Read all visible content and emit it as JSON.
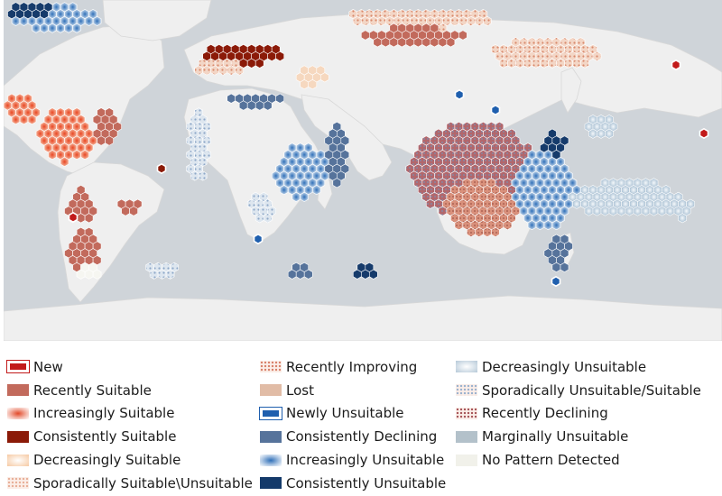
{
  "map": {
    "colors": {
      "ocean": "#cfd4d9",
      "land": "#efefef",
      "country_border": "#d3d3d3"
    }
  },
  "legend": {
    "columns": [
      [
        {
          "key": "new",
          "label": "New",
          "swatch": "new",
          "color": "#c21a1a"
        },
        {
          "key": "recently_suitable",
          "label": "Recently Suitable",
          "swatch": "solid",
          "color": "#c26a5c"
        },
        {
          "key": "increasingly_suitable",
          "label": "Increasingly Suitable",
          "swatch": "glow",
          "color": "#e24a2a"
        },
        {
          "key": "consistently_suitable",
          "label": "Consistently Suitable",
          "swatch": "solid",
          "color": "#8b1a08"
        },
        {
          "key": "decreasingly_suitable",
          "label": "Decreasingly Suitable",
          "swatch": "fade",
          "color": "#f6c9a2"
        },
        {
          "key": "sporadically_suitable_unsuitable",
          "label": "Sporadically Suitable\\Unsuitable",
          "swatch": "dots",
          "color": "#e8b09a"
        }
      ],
      [
        {
          "key": "recently_improving",
          "label": "Recently Improving",
          "swatch": "dots",
          "color": "#d8836c"
        },
        {
          "key": "lost",
          "label": "Lost",
          "swatch": "solid",
          "color": "#e1bca6"
        },
        {
          "key": "newly_unsuitable",
          "label": "Newly Unsuitable",
          "swatch": "new",
          "color": "#1f5fae"
        },
        {
          "key": "consistently_declining",
          "label": "Consistently Declining",
          "swatch": "solid",
          "color": "#56739b"
        },
        {
          "key": "increasingly_unsuitable",
          "label": "Increasingly Unsuitable",
          "swatch": "glow",
          "color": "#2f6fb8"
        },
        {
          "key": "consistently_unsuitable",
          "label": "Consistently Unsuitable",
          "swatch": "solid",
          "color": "#143a6a"
        }
      ],
      [
        {
          "key": "decreasingly_unsuitable",
          "label": "Decreasingly Unsuitable",
          "swatch": "fade",
          "color": "#b6c9d8"
        },
        {
          "key": "sporadically_unsuitable_suitable",
          "label": "Sporadically Unsuitable/Suitable",
          "swatch": "dots",
          "color": "#9db3cf"
        },
        {
          "key": "recently_declining",
          "label": "Recently Declining",
          "swatch": "dots",
          "color": "#a8585c"
        },
        {
          "key": "marginally_unsuitable",
          "label": "Marginally Unsuitable",
          "swatch": "solid",
          "color": "#b3c1ca"
        },
        {
          "key": "no_pattern_detected",
          "label": "No Pattern Detected",
          "swatch": "solid",
          "color": "#f1f1ea"
        }
      ]
    ]
  }
}
